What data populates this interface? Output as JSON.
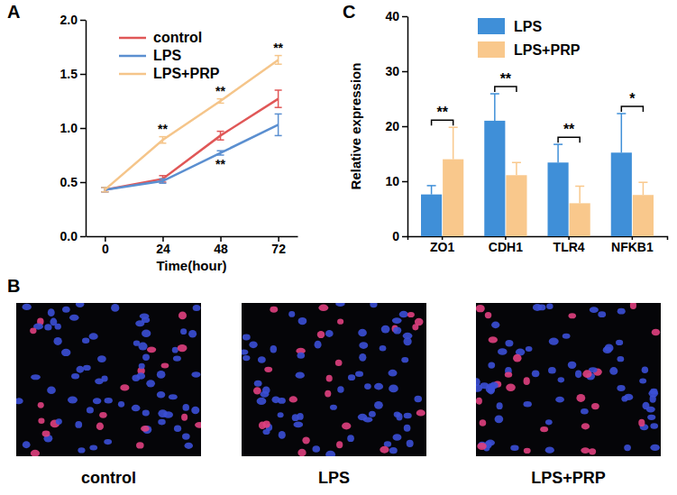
{
  "chart_data": [
    {
      "panel": "A",
      "type": "line",
      "x_label": "Time(hour)",
      "x": [
        0,
        24,
        48,
        72
      ],
      "xlim": [
        -8,
        80
      ],
      "xticks": [
        0,
        24,
        48,
        72
      ],
      "ylim": [
        0,
        2
      ],
      "yticks": [
        {
          "value": 0,
          "label": "0.0"
        },
        {
          "value": 0.5,
          "label": "0.5"
        },
        {
          "value": 1,
          "label": "1.0"
        },
        {
          "value": 1.5,
          "label": "1.5"
        },
        {
          "value": 2,
          "label": "2.0"
        }
      ],
      "legend": "upper left",
      "series": [
        {
          "name": "control",
          "color": "#e05757",
          "values": [
            0.43,
            0.53,
            0.93,
            1.27
          ],
          "errors": [
            0.02,
            0.03,
            0.04,
            0.08
          ]
        },
        {
          "name": "LPS",
          "color": "#5b8fd0",
          "values": [
            0.43,
            0.51,
            0.77,
            1.03
          ],
          "errors": [
            0.02,
            0.02,
            0.02,
            0.1
          ]
        },
        {
          "name": "LPS+PRP",
          "color": "#f5c58a",
          "values": [
            0.43,
            0.89,
            1.25,
            1.63
          ],
          "errors": [
            0.02,
            0.03,
            0.02,
            0.04
          ]
        }
      ],
      "annotations": [
        {
          "text": "**",
          "x": 24,
          "series": 2,
          "anchor": "above"
        },
        {
          "text": "**",
          "x": 48,
          "series": 2,
          "anchor": "above"
        },
        {
          "text": "**",
          "x": 48,
          "series": 1,
          "anchor": "below"
        },
        {
          "text": "**",
          "x": 72,
          "series": 2,
          "anchor": "above"
        }
      ]
    },
    {
      "panel": "C",
      "type": "bar",
      "y_label": "Relative expression",
      "categories": [
        "ZO1",
        "CDH1",
        "TLR4",
        "NFKB1"
      ],
      "ylim": [
        0,
        40
      ],
      "yticks": [
        0,
        10,
        20,
        30,
        40
      ],
      "legend": "upper center",
      "series": [
        {
          "name": "LPS",
          "color": "#3f8fd8",
          "values": [
            7.6,
            21,
            13.4,
            15.2
          ],
          "errors": [
            1.6,
            4.9,
            3.3,
            7.1
          ]
        },
        {
          "name": "LPS+PRP",
          "color": "#f9c88c",
          "values": [
            14,
            11.1,
            6,
            7.5
          ],
          "errors": [
            5.8,
            2.3,
            3.1,
            2.3
          ]
        }
      ],
      "significance": [
        "**",
        "**",
        "**",
        "*"
      ]
    }
  ],
  "image_panels": {
    "panel": "B",
    "captions": [
      "control",
      "LPS",
      "LPS+PRP"
    ]
  }
}
